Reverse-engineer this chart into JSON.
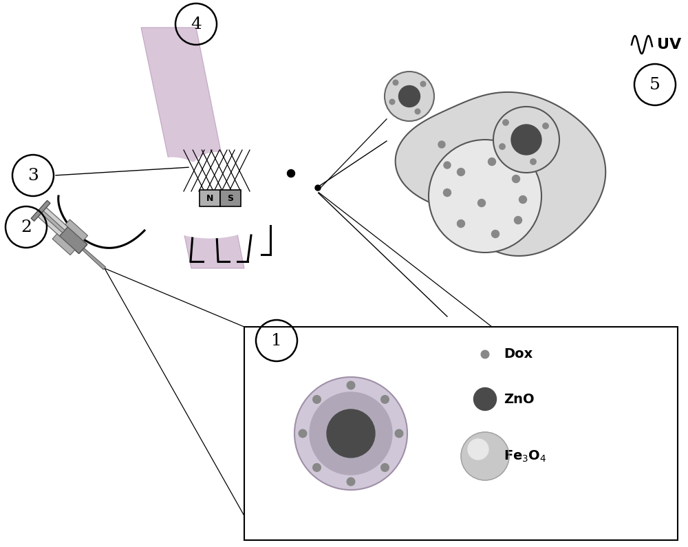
{
  "bg_color": "#ffffff",
  "light_gray": "#c8c8c8",
  "med_gray": "#a0a0a0",
  "dark_gray": "#606060",
  "cell_fill": "#d0d0d0",
  "cell_inner": "#b8b8b8",
  "zno_dark": "#4a4a4a",
  "fe3o4_light": "#c8c8c8",
  "dox_gray": "#888888",
  "beam_color": "#d0b8d0",
  "beam_edge": "#b898b8",
  "dox_label": "Dox",
  "zno_label": "ZnO",
  "fe3o4_label": "Fe$_3$O$_4$",
  "uv_text": "UV",
  "mouse_body_color": "white",
  "mouse_line_color": "black",
  "magnet_n_color": "#b0b0b0",
  "magnet_s_color": "#909090"
}
